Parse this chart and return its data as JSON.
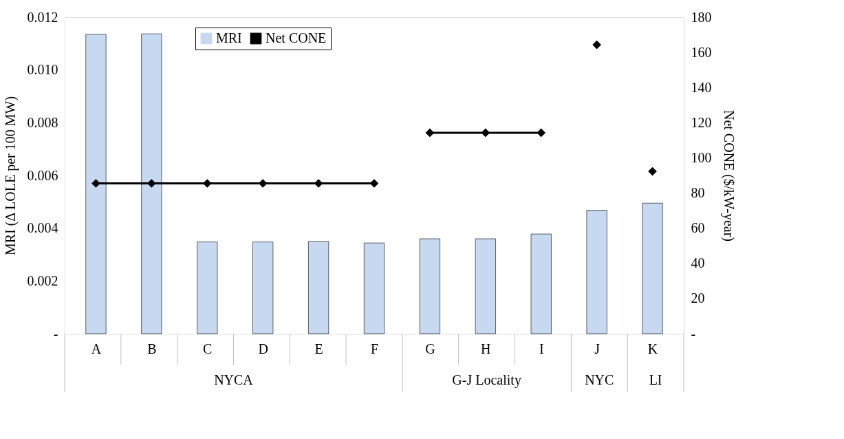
{
  "chart_data": {
    "type": "bar",
    "categories": [
      "A",
      "B",
      "C",
      "D",
      "E",
      "F",
      "G",
      "H",
      "I",
      "J",
      "K"
    ],
    "ylabel": "MRI (Δ LOLE per 100 MW)",
    "y2label": "Net CONE ($/kW-year)",
    "ylim": [
      0,
      0.012
    ],
    "yticks": [
      {
        "value": 0,
        "label": "-"
      },
      0.002,
      0.004,
      0.006,
      0.008,
      {
        "value": 0.01,
        "label": "0.010"
      },
      0.012
    ],
    "y2lim": [
      0,
      180
    ],
    "y2ticks": [
      {
        "value": 0,
        "label": "-"
      },
      20,
      40,
      60,
      80,
      100,
      120,
      140,
      160,
      180
    ],
    "series": [
      {
        "name": "MRI",
        "color": "#c6d9f1",
        "values": [
          0.01135,
          0.01137,
          0.00348,
          0.00348,
          0.0035,
          0.00344,
          0.0036,
          0.0036,
          0.00378,
          0.00468,
          0.00495
        ]
      },
      {
        "name": "Net CONE",
        "type": "line",
        "axis": "y2",
        "color": "#000000",
        "values": [
          85.5,
          85.5,
          85.5,
          85.5,
          85.5,
          85.5,
          null,
          null,
          null,
          null,
          null
        ]
      },
      {
        "type": "line",
        "axis": "y2",
        "color": "#000000",
        "values": [
          null,
          null,
          null,
          null,
          null,
          null,
          114.3,
          114.3,
          114.3,
          null,
          null
        ]
      },
      {
        "type": "line",
        "axis": "y2",
        "color": "#000000",
        "values": [
          null,
          null,
          null,
          null,
          null,
          null,
          null,
          null,
          null,
          164.3,
          null
        ]
      },
      {
        "type": "line",
        "axis": "y2",
        "color": "#000000",
        "values": [
          null,
          null,
          null,
          null,
          null,
          null,
          null,
          null,
          null,
          null,
          92.3
        ]
      }
    ],
    "annotations": [
      "NYCA",
      "G-J Locality",
      "NYC",
      "LI"
    ],
    "marker": "diamond",
    "line_style": "solid",
    "legend": "top left",
    "grid": false
  }
}
